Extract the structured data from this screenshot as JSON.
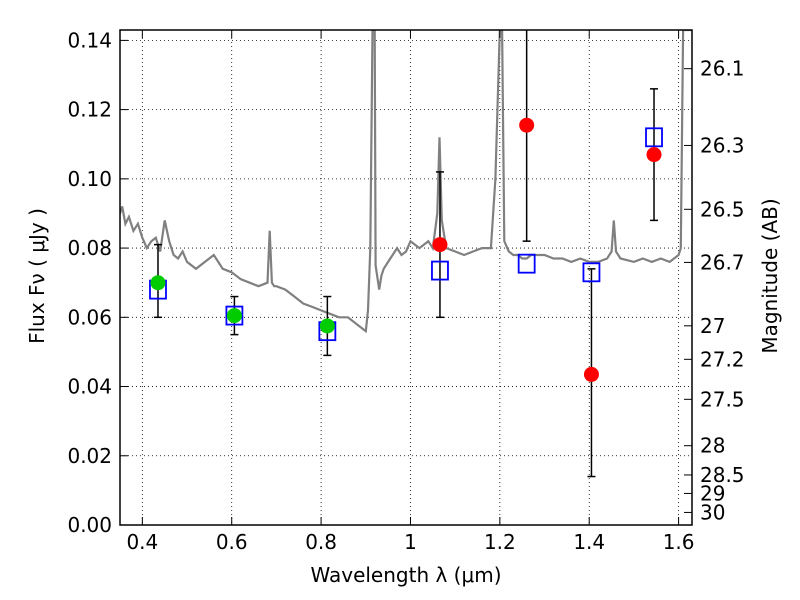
{
  "chart_data": {
    "type": "scatter",
    "title": "",
    "xlabel": "Wavelength  λ (μm)",
    "ylabel": "Flux  Fν  ( μJy )",
    "ylabel_right": "Magnitude (AB)",
    "xlim": [
      0.35,
      1.63
    ],
    "ylim": [
      0.0,
      0.143
    ],
    "grid": true,
    "x_ticks": [
      0.4,
      0.6,
      0.8,
      1.0,
      1.2,
      1.4,
      1.6
    ],
    "x_tick_labels": [
      "0.4",
      "0.6",
      "0.8",
      "1",
      "1.2",
      "1.4",
      "1.6"
    ],
    "y_ticks": [
      0.0,
      0.02,
      0.04,
      0.06,
      0.08,
      0.1,
      0.12,
      0.14
    ],
    "y_tick_labels": [
      "0.00",
      "0.02",
      "0.04",
      "0.06",
      "0.08",
      "0.10",
      "0.12",
      "0.14"
    ],
    "mag_ticks": [
      26.1,
      26.3,
      26.5,
      26.7,
      27,
      27.2,
      27.5,
      28,
      28.5,
      29,
      30
    ],
    "mag_tick_labels": [
      "26.1",
      "26.3",
      "26.5",
      "26.7",
      "27",
      "27.2",
      "27.5",
      "28",
      "28.5",
      "29",
      "30"
    ],
    "series": [
      {
        "marker": "circle",
        "color": "#00cc00",
        "points": [
          {
            "x": 0.435,
            "y": 0.07,
            "yerr_low": 0.06,
            "yerr_high": 0.081
          },
          {
            "x": 0.606,
            "y": 0.0605,
            "yerr_low": 0.055,
            "yerr_high": 0.066
          },
          {
            "x": 0.814,
            "y": 0.0575,
            "yerr_low": 0.049,
            "yerr_high": 0.066
          }
        ]
      },
      {
        "marker": "circle",
        "color": "#ff0000",
        "points": [
          {
            "x": 1.066,
            "y": 0.081,
            "yerr_low": 0.06,
            "yerr_high": 0.102
          },
          {
            "x": 1.26,
            "y": 0.1155,
            "yerr_low": 0.082,
            "yerr_high": 0.143
          },
          {
            "x": 1.405,
            "y": 0.0435,
            "yerr_low": 0.014,
            "yerr_high": 0.074
          },
          {
            "x": 1.545,
            "y": 0.107,
            "yerr_low": 0.088,
            "yerr_high": 0.126
          }
        ]
      },
      {
        "marker": "open-square",
        "color": "#0000ff",
        "points": [
          {
            "x": 0.435,
            "y": 0.068
          },
          {
            "x": 0.606,
            "y": 0.0605
          },
          {
            "x": 0.814,
            "y": 0.056
          },
          {
            "x": 1.066,
            "y": 0.0735
          },
          {
            "x": 1.26,
            "y": 0.0755
          },
          {
            "x": 1.405,
            "y": 0.073
          },
          {
            "x": 1.545,
            "y": 0.112
          }
        ]
      }
    ],
    "sed_model": {
      "color": "#808080",
      "x": [
        0.35,
        0.355,
        0.362,
        0.37,
        0.38,
        0.39,
        0.4,
        0.41,
        0.42,
        0.43,
        0.44,
        0.45,
        0.46,
        0.47,
        0.48,
        0.49,
        0.5,
        0.52,
        0.54,
        0.56,
        0.58,
        0.6,
        0.62,
        0.64,
        0.66,
        0.68,
        0.685,
        0.69,
        0.695,
        0.7,
        0.72,
        0.74,
        0.76,
        0.78,
        0.8,
        0.82,
        0.84,
        0.86,
        0.88,
        0.9,
        0.905,
        0.91,
        0.915,
        0.92,
        0.922,
        0.93,
        0.935,
        0.94,
        0.95,
        0.96,
        0.97,
        0.98,
        0.99,
        1.0,
        1.02,
        1.04,
        1.05,
        1.06,
        1.065,
        1.07,
        1.08,
        1.1,
        1.12,
        1.14,
        1.16,
        1.18,
        1.19,
        1.2,
        1.205,
        1.21,
        1.22,
        1.23,
        1.24,
        1.25,
        1.26,
        1.27,
        1.28,
        1.3,
        1.32,
        1.34,
        1.36,
        1.38,
        1.4,
        1.42,
        1.44,
        1.45,
        1.455,
        1.46,
        1.47,
        1.5,
        1.52,
        1.54,
        1.56,
        1.58,
        1.6,
        1.605,
        1.61,
        1.63
      ],
      "y": [
        0.09,
        0.092,
        0.087,
        0.089,
        0.085,
        0.087,
        0.083,
        0.08,
        0.082,
        0.083,
        0.079,
        0.088,
        0.082,
        0.078,
        0.077,
        0.079,
        0.076,
        0.074,
        0.076,
        0.078,
        0.074,
        0.073,
        0.071,
        0.07,
        0.069,
        0.07,
        0.085,
        0.07,
        0.069,
        0.069,
        0.068,
        0.066,
        0.064,
        0.063,
        0.062,
        0.061,
        0.06,
        0.06,
        0.058,
        0.056,
        0.062,
        0.08,
        0.143,
        0.143,
        0.075,
        0.068,
        0.072,
        0.074,
        0.076,
        0.078,
        0.08,
        0.078,
        0.079,
        0.082,
        0.08,
        0.082,
        0.08,
        0.09,
        0.112,
        0.088,
        0.08,
        0.079,
        0.078,
        0.079,
        0.08,
        0.08,
        0.1,
        0.143,
        0.143,
        0.082,
        0.079,
        0.078,
        0.078,
        0.077,
        0.077,
        0.078,
        0.078,
        0.078,
        0.077,
        0.077,
        0.076,
        0.077,
        0.076,
        0.076,
        0.077,
        0.079,
        0.088,
        0.079,
        0.077,
        0.076,
        0.077,
        0.076,
        0.077,
        0.076,
        0.078,
        0.08,
        0.143,
        0.143
      ]
    }
  }
}
